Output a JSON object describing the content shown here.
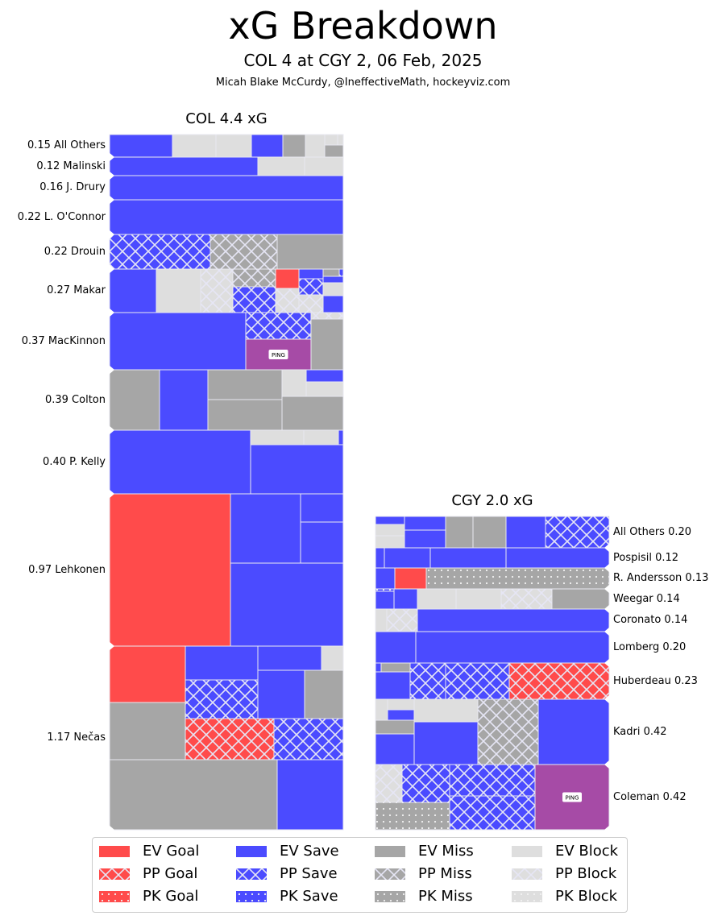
{
  "header": {
    "title": "xG Breakdown",
    "subtitle": "COL 4 at CGY 2, 06 Feb, 2025",
    "credit": "Micah Blake McCurdy, @IneffectiveMath, hockeyviz.com"
  },
  "colors": {
    "goal": "#ff4b4b",
    "save": "#4b4bff",
    "miss": "#a6a6a6",
    "block": "#dedede",
    "ping": "#a64ba6",
    "divider": "#dcdcf0"
  },
  "chart_data": {
    "type": "treemap",
    "title": "xG Breakdown",
    "teams": [
      {
        "team": "COL",
        "title": "COL 4.4 xG",
        "total_xg": 4.4,
        "label_side": "left",
        "players": [
          {
            "name": "All Others",
            "xg": 0.15,
            "label": "0.15 All Others"
          },
          {
            "name": "Malinski",
            "xg": 0.12,
            "label": "0.12 Malinski"
          },
          {
            "name": "J. Drury",
            "xg": 0.16,
            "label": "0.16 J. Drury"
          },
          {
            "name": "L. O'Connor",
            "xg": 0.22,
            "label": "0.22 L. O'Connor"
          },
          {
            "name": "Drouin",
            "xg": 0.22,
            "label": "0.22 Drouin"
          },
          {
            "name": "Makar",
            "xg": 0.27,
            "label": "0.27 Makar"
          },
          {
            "name": "MacKinnon",
            "xg": 0.37,
            "label": "0.37 MacKinnon",
            "ping": true
          },
          {
            "name": "Colton",
            "xg": 0.39,
            "label": "0.39 Colton"
          },
          {
            "name": "P. Kelly",
            "xg": 0.4,
            "label": "0.40 P. Kelly"
          },
          {
            "name": "Lehkonen",
            "xg": 0.97,
            "label": "0.97 Lehkonen"
          },
          {
            "name": "Nečas",
            "xg": 1.17,
            "label": "1.17 Nečas"
          }
        ]
      },
      {
        "team": "CGY",
        "title": "CGY 2.0 xG",
        "total_xg": 2.0,
        "label_side": "right",
        "players": [
          {
            "name": "All Others",
            "xg": 0.2,
            "label": "All Others 0.20"
          },
          {
            "name": "Pospisil",
            "xg": 0.12,
            "label": "Pospisil 0.12"
          },
          {
            "name": "R. Andersson",
            "xg": 0.13,
            "label": "R. Andersson 0.13"
          },
          {
            "name": "Weegar",
            "xg": 0.14,
            "label": "Weegar 0.14"
          },
          {
            "name": "Coronato",
            "xg": 0.14,
            "label": "Coronato 0.14"
          },
          {
            "name": "Lomberg",
            "xg": 0.2,
            "label": "Lomberg 0.20"
          },
          {
            "name": "Huberdeau",
            "xg": 0.23,
            "label": "Huberdeau 0.23"
          },
          {
            "name": "Kadri",
            "xg": 0.42,
            "label": "Kadri 0.42"
          },
          {
            "name": "Coleman",
            "xg": 0.42,
            "label": "Coleman 0.42",
            "ping": true
          }
        ]
      }
    ],
    "ping_label": "PING",
    "legend": [
      {
        "label": "EV Goal",
        "result": "goal",
        "strength": "EV"
      },
      {
        "label": "PP Goal",
        "result": "goal",
        "strength": "PP"
      },
      {
        "label": "PK Goal",
        "result": "goal",
        "strength": "PK"
      },
      {
        "label": "EV Save",
        "result": "save",
        "strength": "EV"
      },
      {
        "label": "PP Save",
        "result": "save",
        "strength": "PP"
      },
      {
        "label": "PK Save",
        "result": "save",
        "strength": "PK"
      },
      {
        "label": "EV Miss",
        "result": "miss",
        "strength": "EV"
      },
      {
        "label": "PP Miss",
        "result": "miss",
        "strength": "PP"
      },
      {
        "label": "PK Miss",
        "result": "miss",
        "strength": "PK"
      },
      {
        "label": "EV Block",
        "result": "block",
        "strength": "EV"
      },
      {
        "label": "PP Block",
        "result": "block",
        "strength": "PP"
      },
      {
        "label": "PK Block",
        "result": "block",
        "strength": "PK"
      }
    ],
    "legend_placement": "bottom-center"
  }
}
